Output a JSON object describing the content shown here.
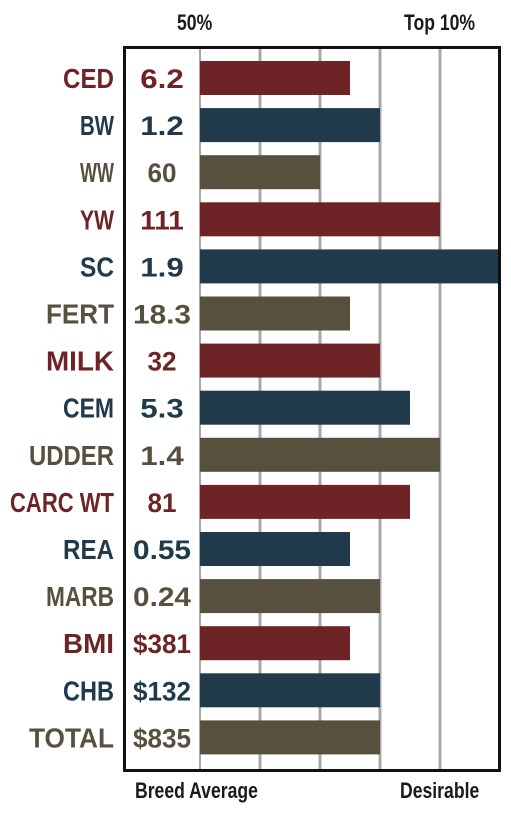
{
  "header": {
    "left": "50%",
    "right": "Top 10%"
  },
  "footer": {
    "left": "Breed Average",
    "right": "Desirable"
  },
  "colors": {
    "red": "#6e2426",
    "blue": "#203a4c",
    "brown": "#57503f",
    "grid": "#a8a8a8",
    "frame": "#111111"
  },
  "chart_data": {
    "type": "bar",
    "orientation": "horizontal",
    "categories": [
      "CED",
      "BW",
      "WW",
      "YW",
      "SC",
      "FERT",
      "MILK",
      "CEM",
      "UDDER",
      "CARC WT",
      "REA",
      "MARB",
      "BMI",
      "CHB",
      "TOTAL"
    ],
    "value_labels": [
      "6.2",
      "1.2",
      "60",
      "111",
      "1.9",
      "18.3",
      "32",
      "5.3",
      "1.4",
      "81",
      "0.55",
      "0.24",
      "$381",
      "$132",
      "$835"
    ],
    "values": [
      2.5,
      3,
      2,
      4,
      5,
      2.5,
      3,
      3.5,
      4,
      3.5,
      2.5,
      3,
      2.5,
      3,
      3
    ],
    "color_keys": [
      "red",
      "blue",
      "brown",
      "red",
      "blue",
      "brown",
      "red",
      "blue",
      "brown",
      "red",
      "blue",
      "brown",
      "red",
      "blue",
      "brown"
    ],
    "xlim": [
      0,
      5
    ],
    "grid": true
  }
}
